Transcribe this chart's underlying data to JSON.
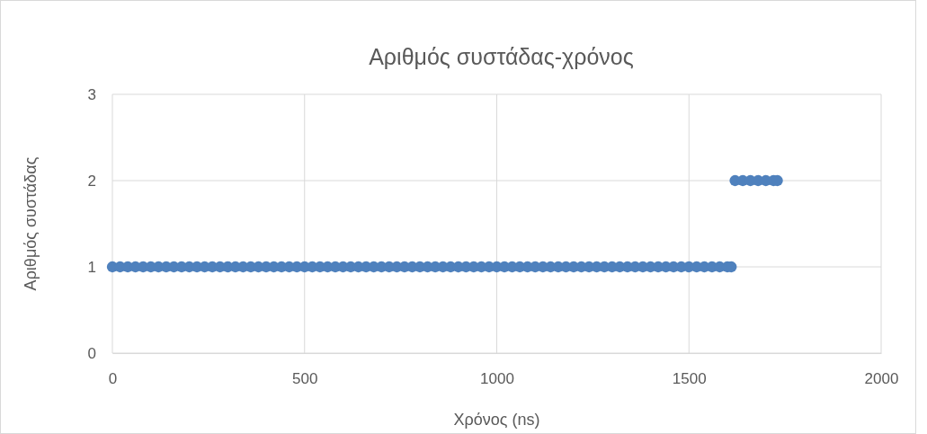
{
  "chart_data": {
    "type": "scatter",
    "title": "Αριθμός συστάδας-χρόνος",
    "xlabel": "Χρόνος (ns)",
    "ylabel": "Αριθμός συστάδας",
    "x": [
      0,
      20,
      40,
      60,
      80,
      100,
      120,
      140,
      160,
      180,
      200,
      220,
      240,
      260,
      280,
      300,
      320,
      340,
      360,
      380,
      400,
      420,
      440,
      460,
      480,
      500,
      520,
      540,
      560,
      580,
      600,
      620,
      640,
      660,
      680,
      700,
      720,
      740,
      760,
      780,
      800,
      820,
      840,
      860,
      880,
      900,
      920,
      940,
      960,
      980,
      1000,
      1020,
      1040,
      1060,
      1080,
      1100,
      1120,
      1140,
      1160,
      1180,
      1200,
      1220,
      1240,
      1260,
      1280,
      1300,
      1320,
      1340,
      1360,
      1380,
      1400,
      1420,
      1440,
      1460,
      1480,
      1500,
      1520,
      1540,
      1560,
      1580,
      1600,
      1610,
      1620,
      1640,
      1660,
      1680,
      1700,
      1720,
      1730
    ],
    "series": [
      {
        "color": "#4f81bd",
        "values": [
          1,
          1,
          1,
          1,
          1,
          1,
          1,
          1,
          1,
          1,
          1,
          1,
          1,
          1,
          1,
          1,
          1,
          1,
          1,
          1,
          1,
          1,
          1,
          1,
          1,
          1,
          1,
          1,
          1,
          1,
          1,
          1,
          1,
          1,
          1,
          1,
          1,
          1,
          1,
          1,
          1,
          1,
          1,
          1,
          1,
          1,
          1,
          1,
          1,
          1,
          1,
          1,
          1,
          1,
          1,
          1,
          1,
          1,
          1,
          1,
          1,
          1,
          1,
          1,
          1,
          1,
          1,
          1,
          1,
          1,
          1,
          1,
          1,
          1,
          1,
          1,
          1,
          1,
          1,
          1,
          1,
          1,
          2,
          2,
          2,
          2,
          2,
          2,
          2
        ]
      }
    ],
    "xlim": [
      0,
      2000
    ],
    "xticks": [
      0,
      500,
      1000,
      1500,
      2000
    ],
    "ylim": [
      0,
      3
    ],
    "yticks": [
      0,
      1,
      2,
      3
    ],
    "grid": true,
    "marker": "circle"
  }
}
